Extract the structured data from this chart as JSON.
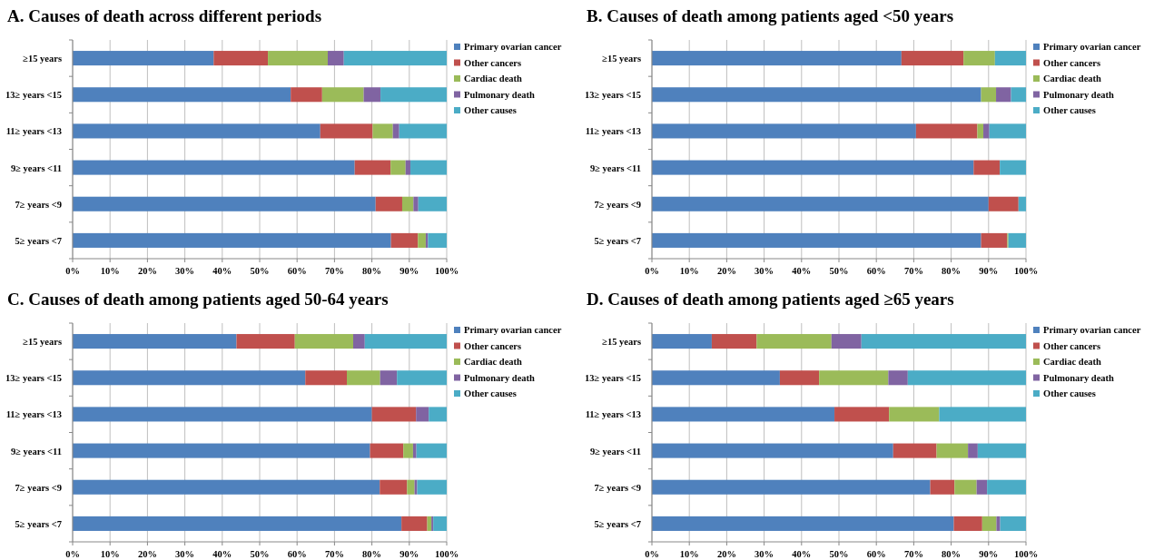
{
  "chart_data": [
    {
      "type": "bar",
      "orientation": "horizontal",
      "stacked": true,
      "title": "A. Causes of death across different periods",
      "categories": [
        "≥15 years",
        "13≥ years <15",
        "11≥ years <13",
        "9≥ years <11",
        "7≥ years <9",
        "5≥ years <7"
      ],
      "series": [
        {
          "name": "Primary ovarian cancer",
          "color": "#4f81bd",
          "values": [
            37.7,
            58.3,
            66.2,
            75.4,
            81,
            85.1
          ]
        },
        {
          "name": "Other cancers",
          "color": "#c0504d",
          "values": [
            14.5,
            8.4,
            14,
            9.6,
            7.1,
            7.2
          ]
        },
        {
          "name": "Cardiac death",
          "color": "#9bbb59",
          "values": [
            16,
            11.1,
            5.4,
            4,
            3,
            2.1
          ]
        },
        {
          "name": "Pulmonary death",
          "color": "#8064a2",
          "values": [
            4.3,
            4.5,
            1.7,
            1.3,
            1.3,
            0.6
          ]
        },
        {
          "name": "Other causes",
          "color": "#4bacc6",
          "values": [
            27.5,
            17.7,
            12.7,
            9.7,
            7.6,
            5
          ]
        }
      ],
      "xlim": [
        0,
        100
      ],
      "xticks": [
        {
          "value": 0,
          "label": "0%"
        },
        {
          "value": 10,
          "label": "10%"
        },
        {
          "value": 20,
          "label": "20%"
        },
        {
          "value": 30,
          "label": "30%"
        },
        {
          "value": 40,
          "label": "40%"
        },
        {
          "value": 50,
          "label": "50%"
        },
        {
          "value": 60,
          "label": "60%"
        },
        {
          "value": 70,
          "label": "70%"
        },
        {
          "value": 80,
          "label": "80%"
        },
        {
          "value": 90,
          "label": "90%"
        },
        {
          "value": 100,
          "label": "100%"
        }
      ],
      "grid": "x",
      "legend": "right"
    },
    {
      "type": "bar",
      "orientation": "horizontal",
      "stacked": true,
      "title": "B. Causes of death among patients aged <50 years",
      "categories": [
        "≥15 years",
        "13≥ years <15",
        "11≥ years <13",
        "9≥ years <11",
        "7≥ years <9",
        "5≥ years <7"
      ],
      "series": [
        {
          "name": "Primary ovarian cancer",
          "color": "#4f81bd",
          "values": [
            66.7,
            88,
            70.6,
            86,
            90,
            88
          ]
        },
        {
          "name": "Other cancers",
          "color": "#c0504d",
          "values": [
            16.6,
            0,
            16.4,
            7,
            8,
            7
          ]
        },
        {
          "name": "Cardiac death",
          "color": "#9bbb59",
          "values": [
            8.4,
            4,
            1.6,
            0,
            0,
            0.3
          ]
        },
        {
          "name": "Pulmonary death",
          "color": "#8064a2",
          "values": [
            0,
            4,
            1.6,
            0,
            0,
            0
          ]
        },
        {
          "name": "Other causes",
          "color": "#4bacc6",
          "values": [
            8.3,
            4,
            9.8,
            7,
            2,
            4.7
          ]
        }
      ],
      "xlim": [
        0,
        100
      ],
      "xticks": [
        {
          "value": 0,
          "label": "0%"
        },
        {
          "value": 10,
          "label": "10%"
        },
        {
          "value": 20,
          "label": "20%"
        },
        {
          "value": 30,
          "label": "30%"
        },
        {
          "value": 40,
          "label": "40%"
        },
        {
          "value": 50,
          "label": "50%"
        },
        {
          "value": 60,
          "label": "60%"
        },
        {
          "value": 70,
          "label": "70%"
        },
        {
          "value": 80,
          "label": "80%"
        },
        {
          "value": 90,
          "label": "90%"
        },
        {
          "value": 100,
          "label": "100%"
        }
      ],
      "grid": "x",
      "legend": "right"
    },
    {
      "type": "bar",
      "orientation": "horizontal",
      "stacked": true,
      "title": "C. Causes of death among patients aged 50-64 years",
      "categories": [
        "≥15 years",
        "13≥ years <15",
        "11≥ years <13",
        "9≥ years <11",
        "7≥ years <9",
        "5≥ years <7"
      ],
      "series": [
        {
          "name": "Primary ovarian cancer",
          "color": "#4f81bd",
          "values": [
            43.8,
            62.2,
            80,
            79.5,
            82.1,
            87.9
          ]
        },
        {
          "name": "Other cancers",
          "color": "#c0504d",
          "values": [
            15.6,
            11.1,
            11.8,
            8.9,
            7.3,
            6.9
          ]
        },
        {
          "name": "Cardiac death",
          "color": "#9bbb59",
          "values": [
            15.6,
            8.9,
            0,
            2.6,
            2,
            1.1
          ]
        },
        {
          "name": "Pulmonary death",
          "color": "#8064a2",
          "values": [
            3.1,
            4.5,
            3.4,
            0.9,
            0.7,
            0.5
          ]
        },
        {
          "name": "Other causes",
          "color": "#4bacc6",
          "values": [
            21.9,
            13.3,
            4.8,
            8.1,
            7.9,
            3.6
          ]
        }
      ],
      "xlim": [
        0,
        100
      ],
      "xticks": [
        {
          "value": 0,
          "label": "0%"
        },
        {
          "value": 10,
          "label": "10%"
        },
        {
          "value": 20,
          "label": "20%"
        },
        {
          "value": 30,
          "label": "30%"
        },
        {
          "value": 40,
          "label": "40%"
        },
        {
          "value": 50,
          "label": "50%"
        },
        {
          "value": 60,
          "label": "60%"
        },
        {
          "value": 70,
          "label": "70%"
        },
        {
          "value": 80,
          "label": "80%"
        },
        {
          "value": 90,
          "label": "90%"
        },
        {
          "value": 100,
          "label": "100%"
        }
      ],
      "grid": "x",
      "legend": "right"
    },
    {
      "type": "bar",
      "orientation": "horizontal",
      "stacked": true,
      "title": "D. Causes of death among patients aged ≥65 years",
      "categories": [
        "≥15 years",
        "13≥ years <15",
        "11≥ years <13",
        "9≥ years <11",
        "7≥ years <9",
        "5≥ years <7"
      ],
      "series": [
        {
          "name": "Primary ovarian cancer",
          "color": "#4f81bd",
          "values": [
            16,
            34.2,
            48.8,
            64.5,
            74.4,
            80.7
          ]
        },
        {
          "name": "Other cancers",
          "color": "#c0504d",
          "values": [
            12,
            10.5,
            14.6,
            11.6,
            6.5,
            7.6
          ]
        },
        {
          "name": "Cardiac death",
          "color": "#9bbb59",
          "values": [
            20,
            18.5,
            13.4,
            8.4,
            5.9,
            3.8
          ]
        },
        {
          "name": "Pulmonary death",
          "color": "#8064a2",
          "values": [
            8,
            5.2,
            0,
            2.6,
            2.8,
            1
          ]
        },
        {
          "name": "Other causes",
          "color": "#4bacc6",
          "values": [
            44,
            31.6,
            23.2,
            12.9,
            10.4,
            6.9
          ]
        }
      ],
      "xlim": [
        0,
        100
      ],
      "xticks": [
        {
          "value": 0,
          "label": "0%"
        },
        {
          "value": 10,
          "label": "10%"
        },
        {
          "value": 20,
          "label": "20%"
        },
        {
          "value": 30,
          "label": "30%"
        },
        {
          "value": 40,
          "label": "40%"
        },
        {
          "value": 50,
          "label": "50%"
        },
        {
          "value": 60,
          "label": "60%"
        },
        {
          "value": 70,
          "label": "70%"
        },
        {
          "value": 80,
          "label": "80%"
        },
        {
          "value": 90,
          "label": "90%"
        },
        {
          "value": 100,
          "label": "100%"
        }
      ],
      "grid": "x",
      "legend": "right"
    }
  ]
}
